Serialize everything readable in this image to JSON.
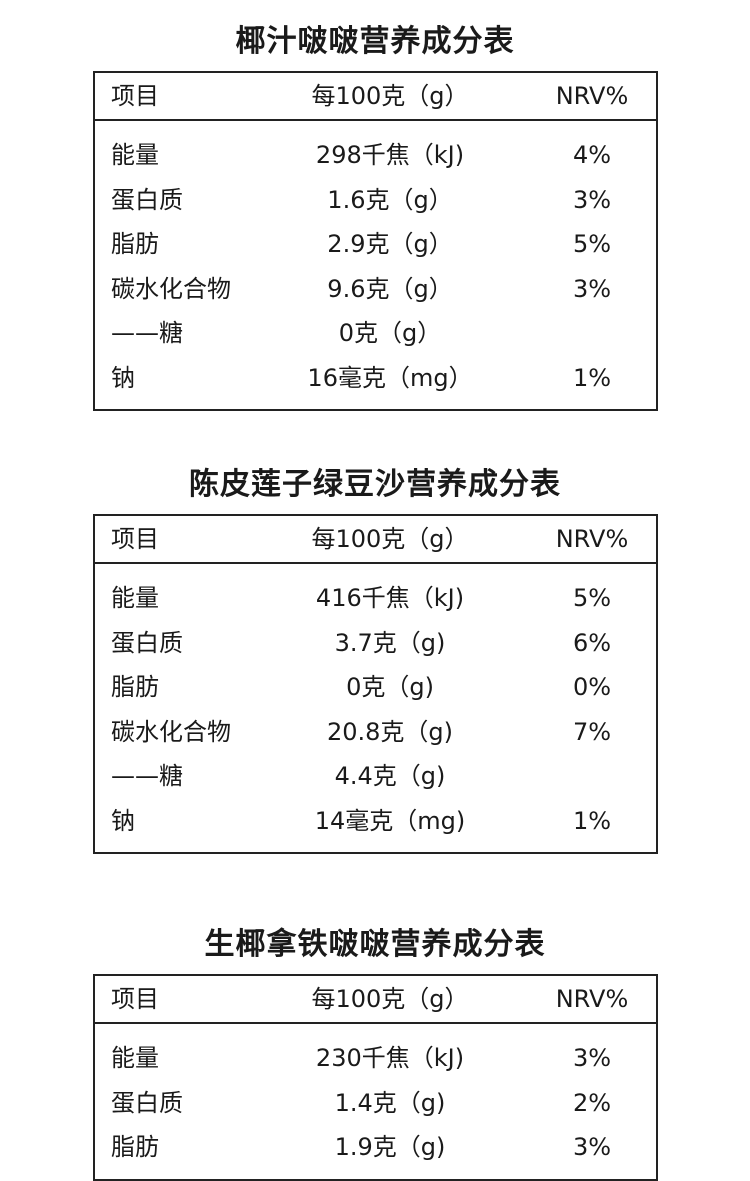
{
  "header": {
    "item": "项目",
    "per100": "每100克（g）",
    "nrv": "NRV%"
  },
  "tables": [
    {
      "title": "椰汁啵啵营养成分表",
      "rows": [
        {
          "name": "能量",
          "value": "298千焦（kJ)",
          "nrv": "4%"
        },
        {
          "name": "蛋白质",
          "value": "1.6克（g）",
          "nrv": "3%"
        },
        {
          "name": "脂肪",
          "value": "2.9克（g）",
          "nrv": "5%"
        },
        {
          "name": "碳水化合物",
          "value": "9.6克（g）",
          "nrv": "3%"
        },
        {
          "name": "——糖",
          "value": "0克（g）",
          "nrv": ""
        },
        {
          "name": "钠",
          "value": "16毫克（mg）",
          "nrv": "1%"
        }
      ]
    },
    {
      "title": "陈皮莲子绿豆沙营养成分表",
      "rows": [
        {
          "name": "能量",
          "value": "416千焦（kJ)",
          "nrv": "5%"
        },
        {
          "name": "蛋白质",
          "value": "3.7克（g)",
          "nrv": "6%"
        },
        {
          "name": "脂肪",
          "value": "0克（g)",
          "nrv": "0%"
        },
        {
          "name": "碳水化合物",
          "value": "20.8克（g)",
          "nrv": "7%"
        },
        {
          "name": "——糖",
          "value": "4.4克（g)",
          "nrv": ""
        },
        {
          "name": "钠",
          "value": "14毫克（mg)",
          "nrv": "1%"
        }
      ]
    },
    {
      "title": "生椰拿铁啵啵营养成分表",
      "rows": [
        {
          "name": "能量",
          "value": "230千焦（kJ)",
          "nrv": "3%"
        },
        {
          "name": "蛋白质",
          "value": "1.4克（g)",
          "nrv": "2%"
        },
        {
          "name": "脂肪",
          "value": "1.9克（g)",
          "nrv": "3%"
        }
      ]
    }
  ]
}
